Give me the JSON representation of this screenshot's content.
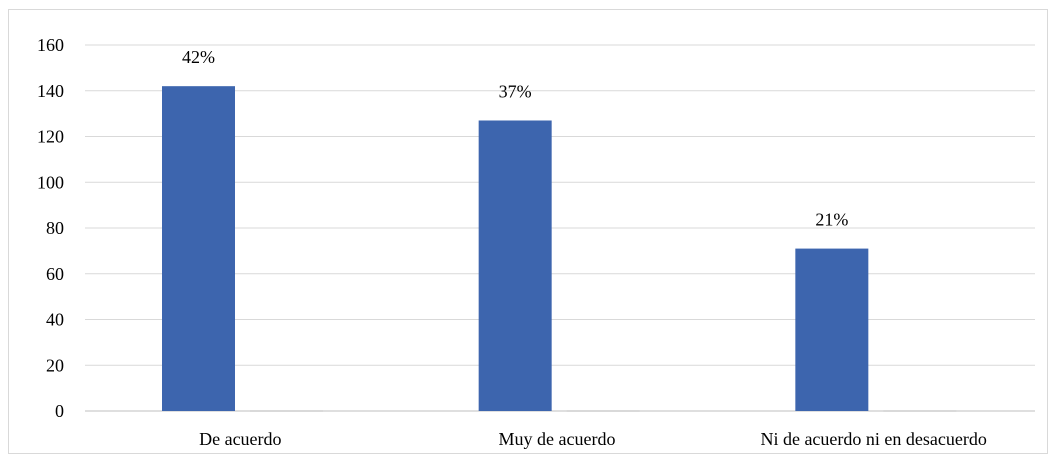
{
  "chart_data": {
    "type": "bar",
    "title": "",
    "xlabel": "",
    "ylabel": "",
    "categories": [
      "De acuerdo",
      "Muy de acuerdo",
      "Ni de acuerdo ni en desacuerdo"
    ],
    "series": [
      {
        "values": [
          142,
          127,
          71
        ],
        "data_labels": [
          "42%",
          "37%",
          "21%"
        ],
        "color": "#3d65ae"
      },
      {
        "values": [
          0,
          0,
          0
        ],
        "color": "#d9d9d9"
      }
    ],
    "ylim": [
      0,
      160
    ],
    "yticks": [
      0,
      20,
      40,
      60,
      80,
      100,
      120,
      140,
      160
    ],
    "grid": true,
    "legend": "none"
  },
  "colors": {
    "bar": "#3d65ae",
    "grid": "#d9d9d9",
    "axis": "#bfbfbf",
    "frame": "#d9d9d9"
  }
}
